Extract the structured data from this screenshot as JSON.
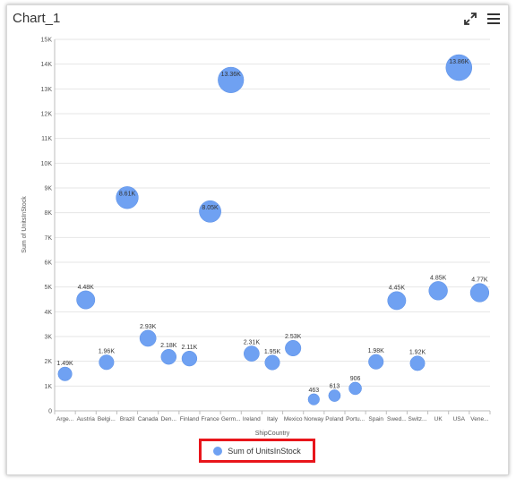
{
  "window": {
    "title": "Chart_1"
  },
  "toolbar": {
    "expand_icon": "expand-icon",
    "menu_icon": "hamburger-menu-icon"
  },
  "colors": {
    "bubble": "#6fa1f2",
    "bubble_stroke": "#5a8fe6",
    "grid": "#e6e6e6",
    "axis_text": "#555555",
    "legend_border": "#e8151b"
  },
  "legend": {
    "label": "Sum of UnitsInStock"
  },
  "chart_data": {
    "type": "scatter",
    "xlabel": "ShipCountry",
    "ylabel": "Sum of UnitsInStock",
    "ylim": [
      0,
      15000
    ],
    "grid": true,
    "legend_position": "bottom",
    "y_ticks": [
      "0",
      "1K",
      "2K",
      "3K",
      "4K",
      "5K",
      "6K",
      "7K",
      "8K",
      "9K",
      "10K",
      "11K",
      "12K",
      "13K",
      "14K",
      "15K"
    ],
    "categories": [
      "Arge...",
      "Austria",
      "Belgi...",
      "Brazil",
      "Canada",
      "Den...",
      "Finland",
      "France",
      "Germ...",
      "Ireland",
      "Italy",
      "Mexico",
      "Norway",
      "Poland",
      "Portu...",
      "Spain",
      "Swed...",
      "Switz...",
      "UK",
      "USA",
      "Vene..."
    ],
    "series": [
      {
        "name": "Sum of UnitsInStock",
        "values": [
          1490,
          4480,
          1960,
          8610,
          2930,
          2180,
          2110,
          8050,
          13360,
          2310,
          1950,
          2530,
          463,
          613,
          906,
          1980,
          4450,
          1920,
          4850,
          13860,
          4770
        ],
        "labels": [
          "1.49K",
          "4.48K",
          "1.96K",
          "8.61K",
          "2.93K",
          "2.18K",
          "2.11K",
          "8.05K",
          "13.36K",
          "2.31K",
          "1.95K",
          "2.53K",
          "463",
          "613",
          "906",
          "1.98K",
          "4.45K",
          "1.92K",
          "4.85K",
          "13.86K",
          "4.77K"
        ]
      }
    ]
  }
}
